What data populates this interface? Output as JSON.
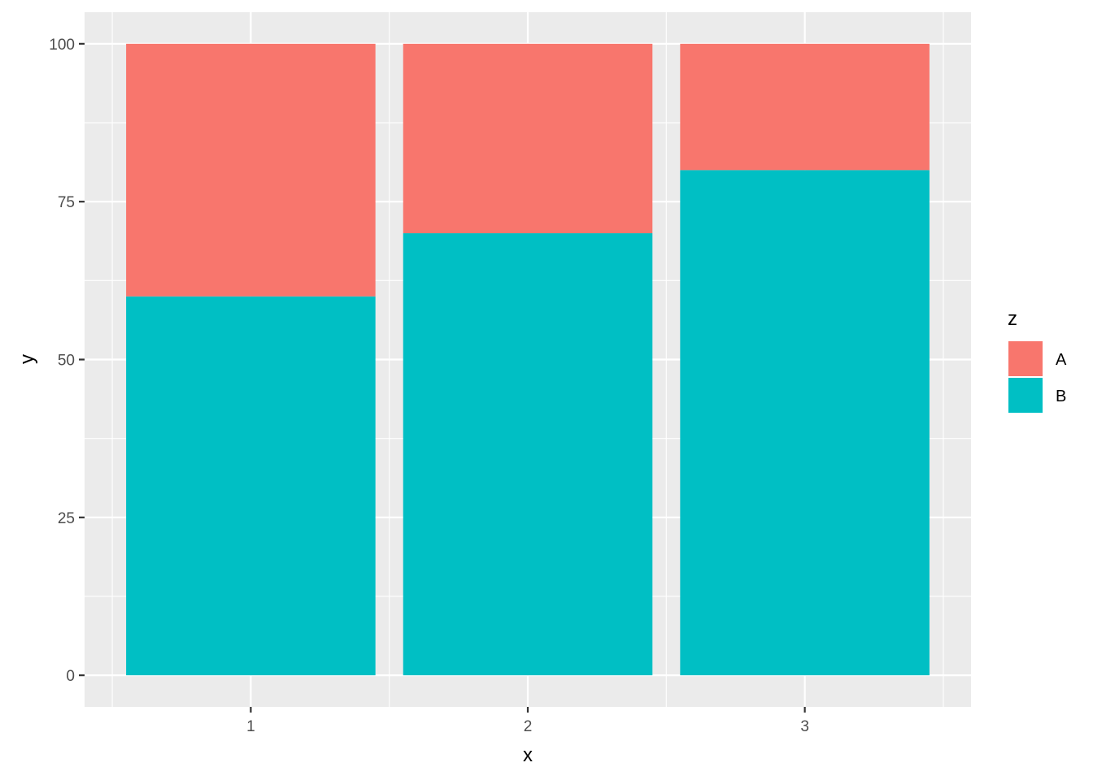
{
  "chart_data": {
    "type": "bar",
    "stacked": true,
    "categories": [
      "1",
      "2",
      "3"
    ],
    "series": [
      {
        "name": "A",
        "values": [
          40,
          30,
          20
        ],
        "color": "#F8766D"
      },
      {
        "name": "B",
        "values": [
          60,
          70,
          80
        ],
        "color": "#00BFC4"
      }
    ],
    "xlabel": "x",
    "ylabel": "y",
    "ylim": [
      -5,
      105
    ],
    "y_ticks": [
      0,
      25,
      50,
      75,
      100
    ],
    "grid": true,
    "legend": {
      "title": "z",
      "position": "right"
    },
    "panel_background": "#EBEBEB",
    "grid_color": "#FFFFFF"
  }
}
